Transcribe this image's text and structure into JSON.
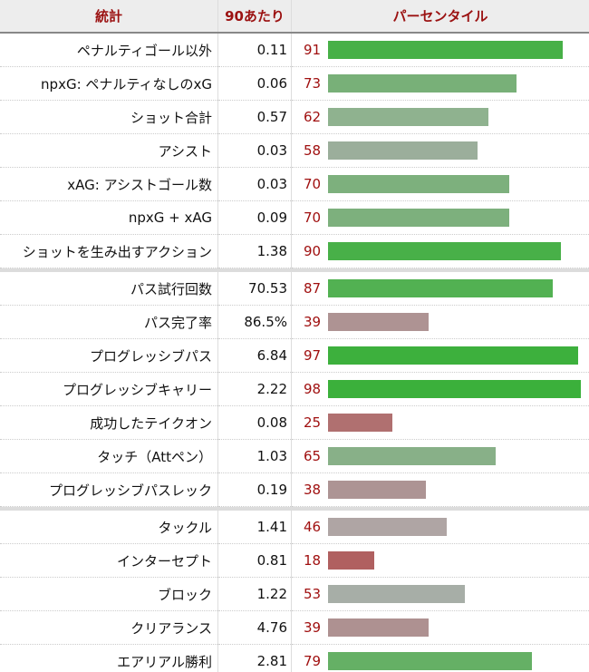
{
  "header": {
    "stat": "統計",
    "per90": "90あたり",
    "percentile": "パーセンタイル"
  },
  "groups": [
    [
      {
        "stat": "ペナルティゴール以外",
        "per90": "0.11",
        "percentile": 91,
        "color": "#47b047"
      },
      {
        "stat": "npxG: ペナルティなしのxG",
        "per90": "0.06",
        "percentile": 73,
        "color": "#78b078"
      },
      {
        "stat": "ショット合計",
        "per90": "0.57",
        "percentile": 62,
        "color": "#8fb28f"
      },
      {
        "stat": "アシスト",
        "per90": "0.03",
        "percentile": 58,
        "color": "#9bae9b"
      },
      {
        "stat": "xAG: アシストゴール数",
        "per90": "0.03",
        "percentile": 70,
        "color": "#7db07d"
      },
      {
        "stat": "npxG + xAG",
        "per90": "0.09",
        "percentile": 70,
        "color": "#7db07d"
      },
      {
        "stat": "ショットを生み出すアクション",
        "per90": "1.38",
        "percentile": 90,
        "color": "#48b048"
      }
    ],
    [
      {
        "stat": "パス試行回数",
        "per90": "70.53",
        "percentile": 87,
        "color": "#52b152"
      },
      {
        "stat": "パス完了率",
        "per90": "86.5%",
        "percentile": 39,
        "color": "#ae9393"
      },
      {
        "stat": "プログレッシブパス",
        "per90": "6.84",
        "percentile": 97,
        "color": "#3db03d"
      },
      {
        "stat": "プログレッシブキャリー",
        "per90": "2.22",
        "percentile": 98,
        "color": "#3bb03b"
      },
      {
        "stat": "成功したテイクオン",
        "per90": "0.08",
        "percentile": 25,
        "color": "#b07070"
      },
      {
        "stat": "タッチ（Attペン）",
        "per90": "1.03",
        "percentile": 65,
        "color": "#88b088"
      },
      {
        "stat": "プログレッシブパスレック",
        "per90": "0.19",
        "percentile": 38,
        "color": "#ad9494"
      }
    ],
    [
      {
        "stat": "タックル",
        "per90": "1.41",
        "percentile": 46,
        "color": "#afa5a4"
      },
      {
        "stat": "インターセプト",
        "per90": "0.81",
        "percentile": 18,
        "color": "#b06060"
      },
      {
        "stat": "ブロック",
        "per90": "1.22",
        "percentile": 53,
        "color": "#a7aea7"
      },
      {
        "stat": "クリアランス",
        "per90": "4.76",
        "percentile": 39,
        "color": "#ae9191"
      },
      {
        "stat": "エアリアル勝利",
        "per90": "2.81",
        "percentile": 79,
        "color": "#65b065"
      }
    ]
  ]
}
